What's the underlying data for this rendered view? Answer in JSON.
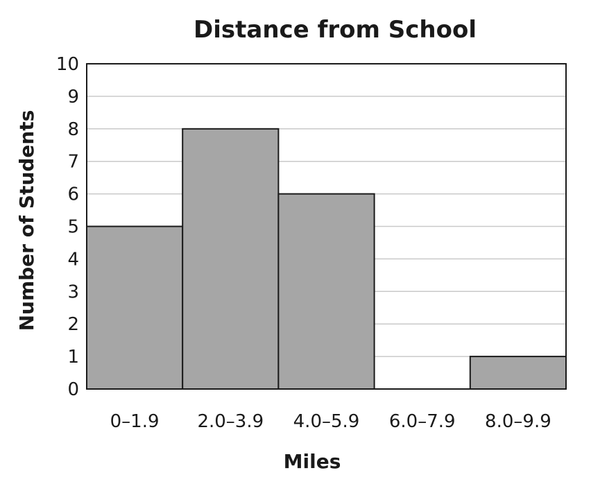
{
  "chart_data": {
    "type": "bar",
    "title": "Distance from School",
    "xlabel": "Miles",
    "ylabel": "Number of Students",
    "categories": [
      "0–1.9",
      "2.0–3.9",
      "4.0–5.9",
      "6.0–7.9",
      "8.0–9.9"
    ],
    "values": [
      5,
      8,
      6,
      0,
      1
    ],
    "ylim": [
      0,
      10
    ],
    "yticks": [
      "0",
      "1",
      "2",
      "3",
      "4",
      "5",
      "6",
      "7",
      "8",
      "9",
      "10"
    ],
    "grid": true,
    "bar_color": "#a6a6a6"
  }
}
